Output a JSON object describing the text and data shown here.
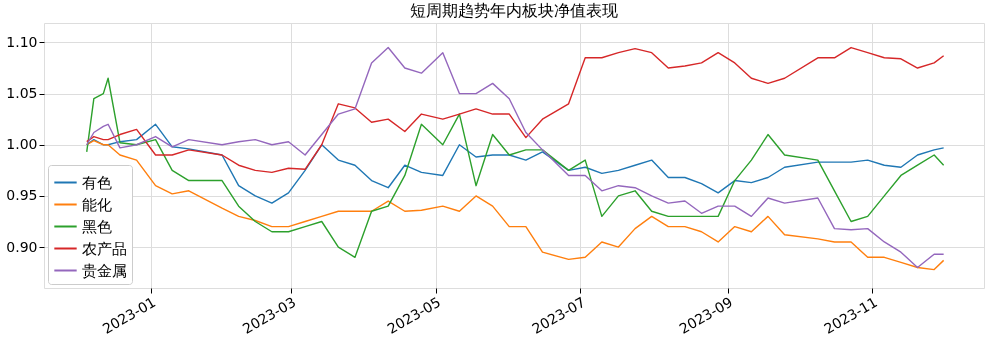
{
  "chart_data": {
    "type": "line",
    "title": "短周期趋势年内板块净值表现",
    "x": [
      "2022-12-05",
      "2022-12-08",
      "2022-12-12",
      "2022-12-14",
      "2022-12-19",
      "2022-12-26",
      "2023-01-03",
      "2023-01-10",
      "2023-01-17",
      "2023-01-31",
      "2023-02-07",
      "2023-02-14",
      "2023-02-21",
      "2023-02-28",
      "2023-03-07",
      "2023-03-14",
      "2023-03-21",
      "2023-03-28",
      "2023-04-04",
      "2023-04-11",
      "2023-04-18",
      "2023-04-25",
      "2023-05-04",
      "2023-05-11",
      "2023-05-18",
      "2023-05-25",
      "2023-06-01",
      "2023-06-08",
      "2023-06-15",
      "2023-06-26",
      "2023-07-03",
      "2023-07-10",
      "2023-07-17",
      "2023-07-24",
      "2023-07-31",
      "2023-08-07",
      "2023-08-14",
      "2023-08-21",
      "2023-08-28",
      "2023-09-04",
      "2023-09-11",
      "2023-09-18",
      "2023-09-25",
      "2023-10-09",
      "2023-10-16",
      "2023-10-23",
      "2023-10-30",
      "2023-11-06",
      "2023-11-13",
      "2023-11-20",
      "2023-11-27",
      "2023-12-01"
    ],
    "series": [
      {
        "name": "有色",
        "color": "#1f77b4",
        "values": [
          1.0,
          1.005,
          1.0,
          1.0,
          1.003,
          1.005,
          1.02,
          0.998,
          0.996,
          0.99,
          0.96,
          0.95,
          0.943,
          0.953,
          0.975,
          1.0,
          0.985,
          0.98,
          0.965,
          0.958,
          0.98,
          0.973,
          0.97,
          1.0,
          0.988,
          0.99,
          0.99,
          0.985,
          0.993,
          0.975,
          0.978,
          0.972,
          0.975,
          0.98,
          0.985,
          0.968,
          0.968,
          0.962,
          0.953,
          0.965,
          0.963,
          0.968,
          0.978,
          0.983,
          0.983,
          0.983,
          0.985,
          0.98,
          0.978,
          0.99,
          0.995,
          0.997
        ]
      },
      {
        "name": "能化",
        "color": "#ff7f0e",
        "values": [
          1.0,
          1.004,
          1.0,
          1.0,
          0.99,
          0.985,
          0.96,
          0.952,
          0.955,
          0.938,
          0.93,
          0.926,
          0.92,
          0.92,
          0.925,
          0.93,
          0.935,
          0.935,
          0.935,
          0.945,
          0.935,
          0.936,
          0.94,
          0.935,
          0.95,
          0.94,
          0.92,
          0.92,
          0.895,
          0.888,
          0.89,
          0.905,
          0.9,
          0.918,
          0.93,
          0.92,
          0.92,
          0.915,
          0.905,
          0.92,
          0.915,
          0.93,
          0.912,
          0.908,
          0.905,
          0.905,
          0.89,
          0.89,
          0.885,
          0.88,
          0.878,
          0.887
        ]
      },
      {
        "name": "黑色",
        "color": "#2ca02c",
        "values": [
          0.993,
          1.045,
          1.05,
          1.065,
          1.002,
          1.0,
          1.005,
          0.975,
          0.965,
          0.965,
          0.94,
          0.925,
          0.915,
          0.915,
          0.92,
          0.925,
          0.9,
          0.89,
          0.935,
          0.94,
          0.97,
          1.02,
          1.0,
          1.03,
          0.96,
          1.01,
          0.99,
          0.995,
          0.995,
          0.975,
          0.985,
          0.93,
          0.95,
          0.955,
          0.935,
          0.93,
          0.93,
          0.93,
          0.93,
          0.965,
          0.985,
          1.01,
          0.99,
          0.985,
          0.955,
          0.925,
          0.93,
          0.95,
          0.97,
          0.98,
          0.99,
          0.98
        ]
      },
      {
        "name": "农产品",
        "color": "#d62728",
        "values": [
          1.003,
          1.008,
          1.005,
          1.005,
          1.01,
          1.015,
          0.99,
          0.99,
          0.995,
          0.99,
          0.98,
          0.975,
          0.973,
          0.977,
          0.976,
          1.0,
          1.04,
          1.036,
          1.022,
          1.025,
          1.013,
          1.03,
          1.025,
          1.03,
          1.035,
          1.03,
          1.03,
          1.007,
          1.025,
          1.04,
          1.085,
          1.085,
          1.09,
          1.094,
          1.09,
          1.075,
          1.077,
          1.08,
          1.09,
          1.08,
          1.065,
          1.06,
          1.065,
          1.085,
          1.085,
          1.095,
          1.09,
          1.085,
          1.084,
          1.075,
          1.08,
          1.087
        ]
      },
      {
        "name": "贵金属",
        "color": "#9467bd",
        "values": [
          1.0,
          1.012,
          1.018,
          1.02,
          0.997,
          1.0,
          1.008,
          0.998,
          1.005,
          1.0,
          1.003,
          1.005,
          1.0,
          1.003,
          0.99,
          1.01,
          1.03,
          1.035,
          1.08,
          1.095,
          1.075,
          1.07,
          1.09,
          1.05,
          1.05,
          1.06,
          1.045,
          1.012,
          0.995,
          0.97,
          0.97,
          0.955,
          0.96,
          0.958,
          0.95,
          0.943,
          0.945,
          0.933,
          0.94,
          0.94,
          0.93,
          0.948,
          0.943,
          0.948,
          0.918,
          0.917,
          0.918,
          0.905,
          0.895,
          0.88,
          0.893,
          0.893
        ]
      }
    ],
    "xlim": [
      "2022-11-17",
      "2023-12-18"
    ],
    "xticks": [
      "2023-01",
      "2023-03",
      "2023-05",
      "2023-07",
      "2023-09",
      "2023-11"
    ],
    "ylim": [
      0.86,
      1.119
    ],
    "yticks": [
      {
        "value": 0.9,
        "label": "0.90"
      },
      {
        "value": 0.95,
        "label": "0.95"
      },
      {
        "value": 1.0,
        "label": "1.00"
      },
      {
        "value": 1.05,
        "label": "1.05"
      },
      {
        "value": 1.1,
        "label": "1.10"
      }
    ],
    "grid": true,
    "legend": "bottom left",
    "marker": "none",
    "line_style": "solid"
  }
}
